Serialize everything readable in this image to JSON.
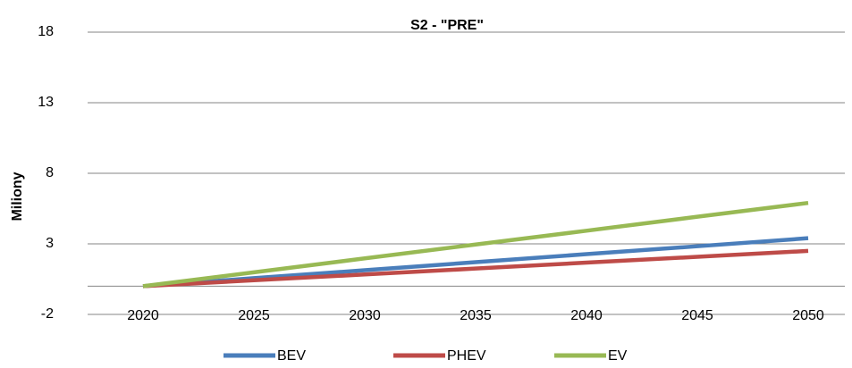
{
  "chart_data": {
    "type": "line",
    "title": "S2 - \"PRE\"",
    "y_label": "Miliony",
    "categories": [
      "2020",
      "2025",
      "2030",
      "2035",
      "2040",
      "2045",
      "2050"
    ],
    "series": [
      {
        "name": "BEV",
        "color": "#4a7ebb",
        "values": [
          0,
          0.57,
          1.13,
          1.7,
          2.27,
          2.83,
          3.4
        ]
      },
      {
        "name": "PHEV",
        "color": "#be4b48",
        "values": [
          0,
          0.42,
          0.83,
          1.25,
          1.67,
          2.08,
          2.5
        ]
      },
      {
        "name": "EV",
        "color": "#98b954",
        "values": [
          0,
          0.98,
          1.97,
          2.95,
          3.93,
          4.92,
          5.9
        ]
      }
    ],
    "ylim": [
      -2,
      18
    ],
    "yticks": [
      -2,
      3,
      8,
      13,
      18
    ],
    "grid": true
  }
}
